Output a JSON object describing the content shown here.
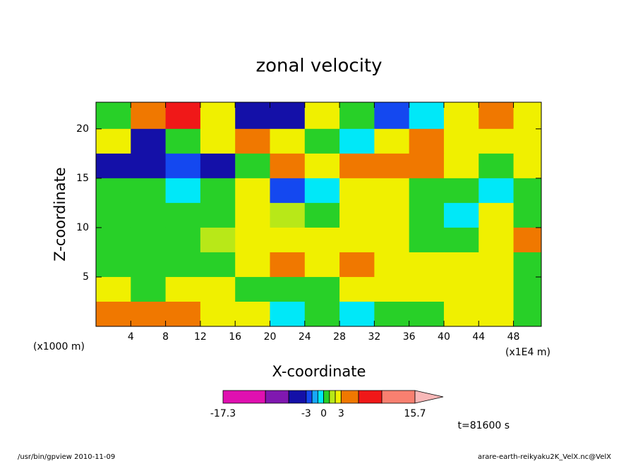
{
  "chart_data": {
    "type": "contourf",
    "title": "zonal velocity",
    "xlabel": "X-coordinate",
    "ylabel": "Z-coordinate",
    "xunit": "(x1E4 m)",
    "yunit": "(x1000 m)",
    "xlim": [
      0,
      51.2
    ],
    "ylim": [
      0,
      22.7
    ],
    "xticks": [
      4,
      8,
      12,
      16,
      20,
      24,
      28,
      32,
      36,
      40,
      44,
      48
    ],
    "yticks": [
      5,
      10,
      15,
      20
    ],
    "x": [
      2,
      6,
      10,
      14,
      18,
      22,
      26,
      30,
      34,
      38,
      42,
      46,
      50
    ],
    "z": [
      21.25,
      18.75,
      16.25,
      13.75,
      11.25,
      8.75,
      6.25,
      3.75,
      1.25
    ],
    "values": [
      [
        0.5,
        4,
        7,
        2.5,
        -5,
        -4,
        2,
        0.5,
        -3,
        -1,
        2.5,
        4,
        2
      ],
      [
        2,
        -4,
        0.5,
        2,
        4,
        2.5,
        0.5,
        -0.5,
        2.5,
        3.5,
        2,
        2.5,
        2
      ],
      [
        -5,
        -4.5,
        -3,
        -3.5,
        0.5,
        5,
        2,
        4,
        4,
        4,
        2,
        0.5,
        2
      ],
      [
        0.5,
        0.5,
        -0.5,
        0.5,
        2,
        -3,
        -1,
        2,
        2,
        0.5,
        0.5,
        -0.5,
        0.5
      ],
      [
        0.5,
        0.5,
        0.5,
        0.5,
        2.5,
        1.5,
        0.5,
        2,
        2,
        0.5,
        -0.5,
        2,
        0.5
      ],
      [
        0.5,
        0.5,
        0.5,
        1.5,
        2,
        2.5,
        2,
        2,
        2,
        0.5,
        0.5,
        2,
        3.5
      ],
      [
        0.5,
        0.5,
        0.5,
        0.5,
        2,
        4,
        2,
        3.5,
        2,
        2,
        2,
        2,
        0.5
      ],
      [
        2.5,
        0.5,
        2,
        2,
        0.5,
        0.5,
        0.5,
        2,
        2,
        2.5,
        2.5,
        2,
        0.5
      ],
      [
        3.5,
        3.5,
        3.5,
        2,
        2,
        -0.5,
        0.5,
        -0.5,
        0.5,
        0.5,
        2,
        2,
        0.5
      ]
    ],
    "colorbar": {
      "levels": [
        -17.3,
        -10,
        -6,
        -3,
        -2,
        -1,
        0,
        1,
        2,
        3,
        6,
        10,
        15.7
      ],
      "colors": [
        "#e010b0",
        "#8018b0",
        "#1410a8",
        "#1448f0",
        "#18a8f8",
        "#00e8f8",
        "#28d028",
        "#b8e818",
        "#f0f000",
        "#f07800",
        "#f01818",
        "#f88070"
      ],
      "over_color": "#f8b8b8",
      "ticks": [
        -17.3,
        -3,
        0,
        3,
        15.7
      ]
    },
    "annotation": "t=81600 s",
    "footer_left": "/usr/bin/gpview   2010-11-09",
    "footer_right": "arare-earth-reikyaku2K_VelX.nc@VelX"
  }
}
